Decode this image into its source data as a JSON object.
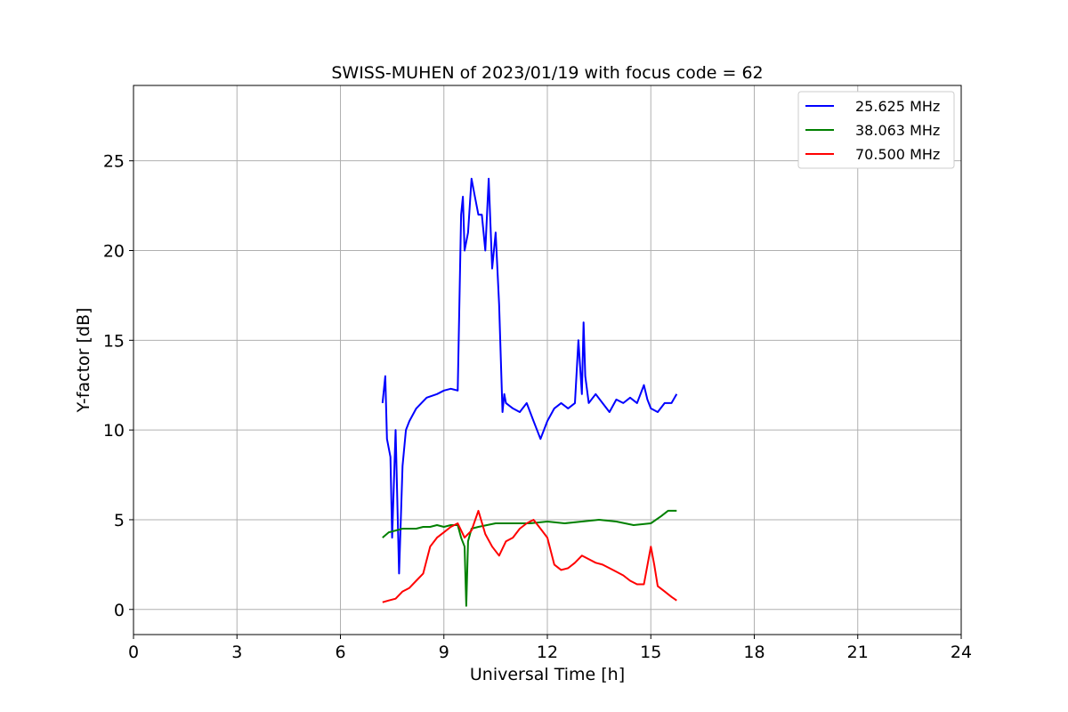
{
  "chart_data": {
    "type": "line",
    "title": "SWISS-MUHEN of 2023/01/19 with focus code = 62",
    "xlabel": "Universal Time [h]",
    "ylabel": "Y-factor [dB]",
    "xlim": [
      0,
      24
    ],
    "ylim": [
      -1.4,
      29.2
    ],
    "xticks": [
      0,
      3,
      6,
      9,
      12,
      15,
      18,
      21,
      24
    ],
    "yticks": [
      0,
      5,
      10,
      15,
      20,
      25
    ],
    "grid": true,
    "legend_position": "top-right",
    "series": [
      {
        "name": "25.625 MHz",
        "color": "#0000ff",
        "x": [
          7.22,
          7.3,
          7.35,
          7.45,
          7.5,
          7.6,
          7.7,
          7.8,
          7.9,
          8.0,
          8.2,
          8.5,
          8.8,
          9.0,
          9.2,
          9.4,
          9.5,
          9.55,
          9.6,
          9.7,
          9.8,
          9.9,
          10.0,
          10.1,
          10.2,
          10.3,
          10.4,
          10.5,
          10.6,
          10.7,
          10.75,
          10.8,
          11.0,
          11.2,
          11.4,
          11.6,
          11.8,
          12.0,
          12.2,
          12.4,
          12.6,
          12.8,
          12.9,
          13.0,
          13.05,
          13.1,
          13.2,
          13.4,
          13.6,
          13.8,
          14.0,
          14.2,
          14.4,
          14.6,
          14.8,
          14.9,
          15.0,
          15.2,
          15.4,
          15.6,
          15.75
        ],
        "y": [
          11.5,
          13,
          9.5,
          8.5,
          4,
          10,
          2,
          8,
          10,
          10.5,
          11.2,
          11.8,
          12,
          12.2,
          12.3,
          12.2,
          22,
          23,
          20,
          21,
          24,
          23,
          22,
          22,
          20,
          24,
          19,
          21,
          17,
          11,
          12,
          11.5,
          11.2,
          11,
          11.5,
          10.5,
          9.5,
          10.5,
          11.2,
          11.5,
          11.2,
          11.5,
          15,
          12,
          16,
          13,
          11.5,
          12,
          11.5,
          11,
          11.7,
          11.5,
          11.8,
          11.5,
          12.5,
          11.7,
          11.2,
          11,
          11.5,
          11.5,
          12
        ]
      },
      {
        "name": "38.063 MHz",
        "color": "#008000",
        "x": [
          7.22,
          7.4,
          7.6,
          7.8,
          8.0,
          8.2,
          8.4,
          8.6,
          8.8,
          9.0,
          9.2,
          9.4,
          9.5,
          9.6,
          9.65,
          9.7,
          9.8,
          10.0,
          10.5,
          11.0,
          11.5,
          12.0,
          12.5,
          13.0,
          13.5,
          14.0,
          14.5,
          15.0,
          15.3,
          15.5,
          15.75
        ],
        "y": [
          4.0,
          4.3,
          4.4,
          4.5,
          4.5,
          4.5,
          4.6,
          4.6,
          4.7,
          4.6,
          4.7,
          4.7,
          4.0,
          3.5,
          0.2,
          3.8,
          4.5,
          4.6,
          4.8,
          4.8,
          4.8,
          4.9,
          4.8,
          4.9,
          5.0,
          4.9,
          4.7,
          4.8,
          5.2,
          5.5,
          5.5
        ]
      },
      {
        "name": "70.500 MHz",
        "color": "#ff0000",
        "x": [
          7.22,
          7.4,
          7.6,
          7.8,
          8.0,
          8.2,
          8.4,
          8.6,
          8.8,
          9.0,
          9.2,
          9.4,
          9.6,
          9.8,
          10.0,
          10.2,
          10.4,
          10.6,
          10.8,
          11.0,
          11.2,
          11.4,
          11.6,
          11.8,
          12.0,
          12.2,
          12.4,
          12.6,
          12.8,
          13.0,
          13.2,
          13.4,
          13.6,
          13.8,
          14.0,
          14.2,
          14.4,
          14.6,
          14.8,
          15.0,
          15.1,
          15.2,
          15.4,
          15.6,
          15.75
        ],
        "y": [
          0.4,
          0.5,
          0.6,
          1.0,
          1.2,
          1.6,
          2.0,
          3.5,
          4.0,
          4.3,
          4.6,
          4.8,
          4.0,
          4.4,
          5.5,
          4.2,
          3.5,
          3.0,
          3.8,
          4.0,
          4.5,
          4.8,
          5.0,
          4.5,
          4.0,
          2.5,
          2.2,
          2.3,
          2.6,
          3.0,
          2.8,
          2.6,
          2.5,
          2.3,
          2.1,
          1.9,
          1.6,
          1.4,
          1.4,
          3.5,
          2.5,
          1.3,
          1.0,
          0.7,
          0.5
        ]
      }
    ]
  }
}
